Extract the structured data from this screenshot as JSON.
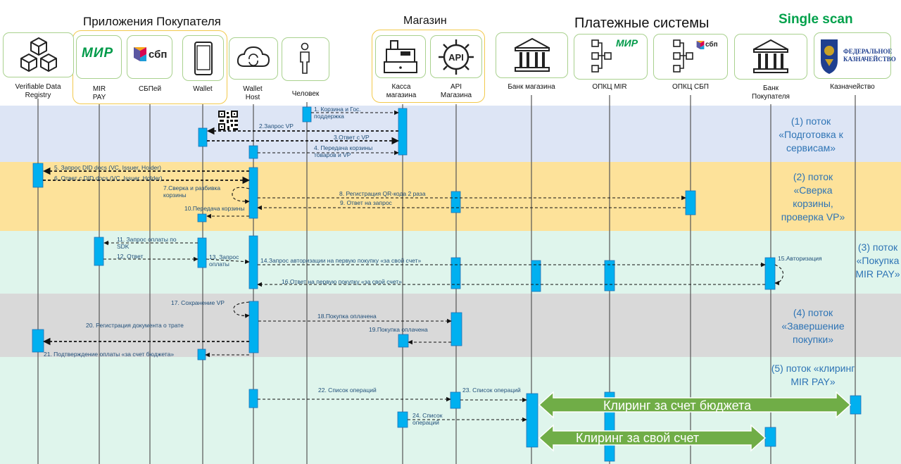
{
  "groups": {
    "buyer_apps": "Приложения Покупателя",
    "store": "Магазин",
    "payment_systems": "Платежные системы",
    "single_scan": "Single scan"
  },
  "logos": {
    "mir": "МИР",
    "sbp": "сбп",
    "api": "API",
    "treasury": "ФЕДЕРАЛЬНОЕ КАЗНАЧЕЙСТВО"
  },
  "actors": [
    {
      "id": "vdr",
      "label": "Verifiable Data Registry",
      "icon": "cubes-icon"
    },
    {
      "id": "mir_pay",
      "label": "MIR PAY",
      "icon": "mir-logo"
    },
    {
      "id": "sbpay",
      "label": "СБПей",
      "icon": "sbp-logo"
    },
    {
      "id": "wallet",
      "label": "Wallet",
      "icon": "phone-icon"
    },
    {
      "id": "wallet_host",
      "label": "Wallet Host",
      "icon": "cloud-icon"
    },
    {
      "id": "person",
      "label": "Человек",
      "icon": "person-icon"
    },
    {
      "id": "kassa",
      "label": "Касса магазина",
      "icon": "cash-register-icon"
    },
    {
      "id": "api_store",
      "label": "API Магазина",
      "icon": "api-gear-icon"
    },
    {
      "id": "bank_store",
      "label": "Банк магазина",
      "icon": "bank-icon"
    },
    {
      "id": "opkc_mir",
      "label": "ОПКЦ MIR",
      "icon": "mir-network-icon"
    },
    {
      "id": "opkc_sbp",
      "label": "ОПКЦ СБП",
      "icon": "sbp-network-icon"
    },
    {
      "id": "bank_buyer",
      "label": "Банк Покупателя",
      "icon": "bank-icon"
    },
    {
      "id": "treasury",
      "label": "Казначейство",
      "icon": "treasury-emblem-icon"
    }
  ],
  "flows": [
    {
      "label": "(1) поток «Подготовка к сервисам»",
      "color": "#dde5f5"
    },
    {
      "label": "(2) поток «Сверка корзины, проверка VP»",
      "color": "#fde29a"
    },
    {
      "label": "(3) поток «Покупка MIR PAY»",
      "color": "#dff5ec"
    },
    {
      "label": "(4) поток «Завершение покупки»",
      "color": "#d9d9d9"
    },
    {
      "label": "(5) поток «клиринг MIR PAY»",
      "color": "#dff5ec"
    }
  ],
  "messages": [
    "1. Корзина и Гос. поддержка",
    "2.Запрос VP",
    "3.Ответ с VP",
    "4. Передача корзины товаров и VP",
    "5. Запрос DID docs (VC, Issuer, Holder)",
    "6. Ответ с DID docs (VC, Issuer, Holder)",
    "7.Сверка и разбивка корзины",
    "8. Регистрация QR-кода 2 раза",
    "9. Ответ на запрос",
    "10.Передача корзины",
    "11. Запрос оплаты по SDK",
    "12. Ответ",
    "13. Запрос оплаты",
    "14.Запрос авторизации на первую покупку «за свой счет»",
    "15.Авторизация",
    "16.Ответ на первую покупку «за свой счет»",
    "17. Сохранение VP",
    "18.Покупка оплачена",
    "19.Покупка оплачена",
    "20. Регистрация документа о трате",
    "21. Подтверждение  оплаты «за счет бюджета»",
    "22. Список операций",
    "23. Список операций",
    "24. Список операций"
  ],
  "clearing": [
    {
      "label": "Клиринг за счет бюджета"
    },
    {
      "label": "Клиринг за свой счет"
    }
  ],
  "colors": {
    "activation": "#00b0f0",
    "lifeline": "#555555",
    "clearing_arrow": "#70ad47",
    "flow_text": "#2e74b5",
    "mir_green": "#009a49",
    "sbp_red": "#e4002b",
    "single_scan": "#00a14b"
  }
}
